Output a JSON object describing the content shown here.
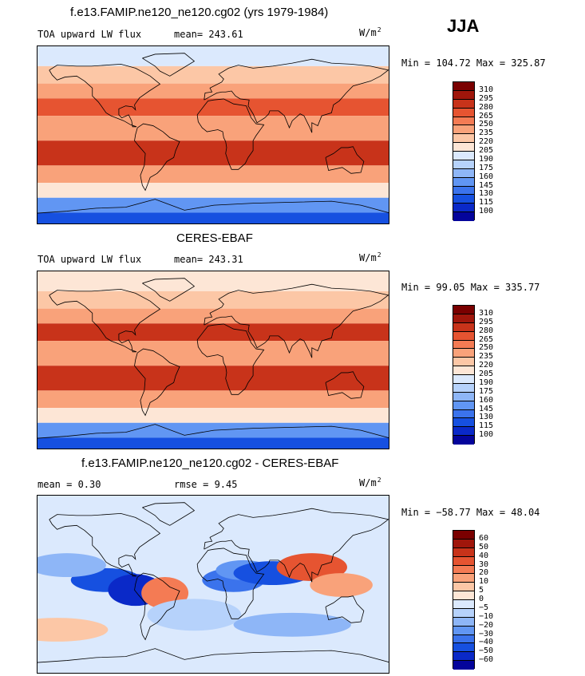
{
  "season": "JJA",
  "panels": [
    {
      "title": "f.e13.FAMIP.ne120_ne120.cg02 (yrs 1979-1984)",
      "left_label": "TOA upward LW flux",
      "mid_label": "mean= 243.61",
      "units": "W/m",
      "units_sup": "2",
      "minmax": "Min = 104.72 Max = 325.87"
    },
    {
      "title": "CERES-EBAF",
      "left_label": "TOA upward LW flux",
      "mid_label": "mean= 243.31",
      "units": "W/m",
      "units_sup": "2",
      "minmax": "Min =  99.05 Max = 335.77"
    },
    {
      "title": "f.e13.FAMIP.ne120_ne120.cg02 - CERES-EBAF",
      "left_label": "mean =    0.30",
      "mid_label": "rmse =    9.45",
      "units": "W/m",
      "units_sup": "2",
      "minmax": "Min = −58.77 Max =  48.04"
    }
  ],
  "chart_data": [
    {
      "type": "heatmap",
      "title": "f.e13.FAMIP.ne120_ne120.cg02 (yrs 1979-1984)",
      "variable": "TOA upward LW flux",
      "units": "W/m2",
      "mean": 243.61,
      "min": 104.72,
      "max": 325.87,
      "contour_levels": [
        100,
        115,
        130,
        145,
        160,
        175,
        190,
        205,
        220,
        235,
        250,
        265,
        280,
        295,
        310
      ],
      "colors": [
        "#04049b",
        "#0a29c8",
        "#1650e0",
        "#3b73ec",
        "#6196f3",
        "#8eb6f7",
        "#b6d2fb",
        "#dbe9fd",
        "#fde6d6",
        "#fcc7a6",
        "#f9a27a",
        "#f47b54",
        "#e65431",
        "#c8331a",
        "#a0160b",
        "#7a0000"
      ],
      "zonal_band_values": [
        {
          "lat": 80,
          "value": 200
        },
        {
          "lat": 60,
          "value": 225
        },
        {
          "lat": 45,
          "value": 245
        },
        {
          "lat": 30,
          "value": 275
        },
        {
          "lat": 10,
          "value": 240
        },
        {
          "lat": -20,
          "value": 285
        },
        {
          "lat": -40,
          "value": 235
        },
        {
          "lat": -55,
          "value": 205
        },
        {
          "lat": -70,
          "value": 150
        },
        {
          "lat": -85,
          "value": 120
        }
      ]
    },
    {
      "type": "heatmap",
      "title": "CERES-EBAF",
      "variable": "TOA upward LW flux",
      "units": "W/m2",
      "mean": 243.31,
      "min": 99.05,
      "max": 335.77,
      "contour_levels": [
        100,
        115,
        130,
        145,
        160,
        175,
        190,
        205,
        220,
        235,
        250,
        265,
        280,
        295,
        310
      ],
      "colors": [
        "#04049b",
        "#0a29c8",
        "#1650e0",
        "#3b73ec",
        "#6196f3",
        "#8eb6f7",
        "#b6d2fb",
        "#dbe9fd",
        "#fde6d6",
        "#fcc7a6",
        "#f9a27a",
        "#f47b54",
        "#e65431",
        "#c8331a",
        "#a0160b",
        "#7a0000"
      ],
      "zonal_band_values": [
        {
          "lat": 80,
          "value": 205
        },
        {
          "lat": 60,
          "value": 228
        },
        {
          "lat": 45,
          "value": 248
        },
        {
          "lat": 30,
          "value": 280
        },
        {
          "lat": 10,
          "value": 245
        },
        {
          "lat": -20,
          "value": 285
        },
        {
          "lat": -40,
          "value": 238
        },
        {
          "lat": -55,
          "value": 208
        },
        {
          "lat": -70,
          "value": 150
        },
        {
          "lat": -85,
          "value": 115
        }
      ]
    },
    {
      "type": "heatmap",
      "title": "f.e13.FAMIP.ne120_ne120.cg02 - CERES-EBAF",
      "variable": "difference",
      "units": "W/m2",
      "mean": 0.3,
      "rmse": 9.45,
      "min": -58.77,
      "max": 48.04,
      "contour_levels": [
        -60,
        -50,
        -40,
        -30,
        -20,
        -10,
        -5,
        0,
        5,
        10,
        20,
        30,
        40,
        50,
        60
      ],
      "tick_labels": [
        "60",
        "50",
        "40",
        "30",
        "20",
        "10",
        "5",
        "0",
        "−5",
        "−10",
        "−20",
        "−30",
        "−40",
        "−50",
        "−60"
      ],
      "colors": [
        "#04049b",
        "#0a29c8",
        "#1650e0",
        "#3b73ec",
        "#6196f3",
        "#8eb6f7",
        "#b6d2fb",
        "#dbe9fd",
        "#fde6d6",
        "#fcc7a6",
        "#f9a27a",
        "#f47b54",
        "#e65431",
        "#c8331a",
        "#a0160b",
        "#7a0000"
      ]
    }
  ]
}
